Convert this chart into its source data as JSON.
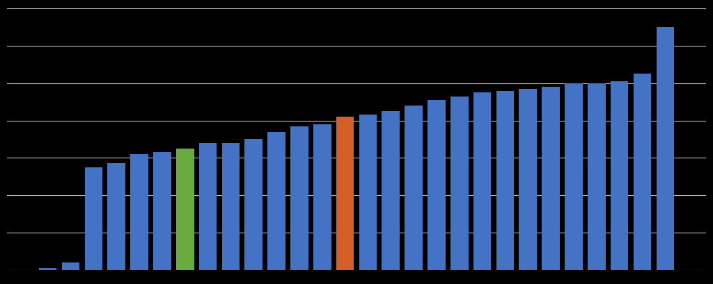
{
  "values": [
    1,
    4,
    55,
    57,
    62,
    63,
    65,
    68,
    68,
    70,
    74,
    77,
    78,
    82,
    83,
    85,
    88,
    91,
    93,
    95,
    96,
    97,
    98,
    100,
    100,
    101,
    105,
    130
  ],
  "green_index": 6,
  "orange_index": 13,
  "ylim": [
    0,
    140
  ],
  "yticks": [
    0,
    20,
    40,
    60,
    80,
    100,
    120,
    140
  ],
  "background_color": "#000000",
  "bar_color_blue": "#4472C4",
  "bar_color_green": "#6AAB3F",
  "bar_color_orange": "#D46027",
  "grid_color": "#BBBBBB",
  "figsize": [
    10.24,
    4.09
  ],
  "dpi": 100,
  "bar_width": 0.78
}
